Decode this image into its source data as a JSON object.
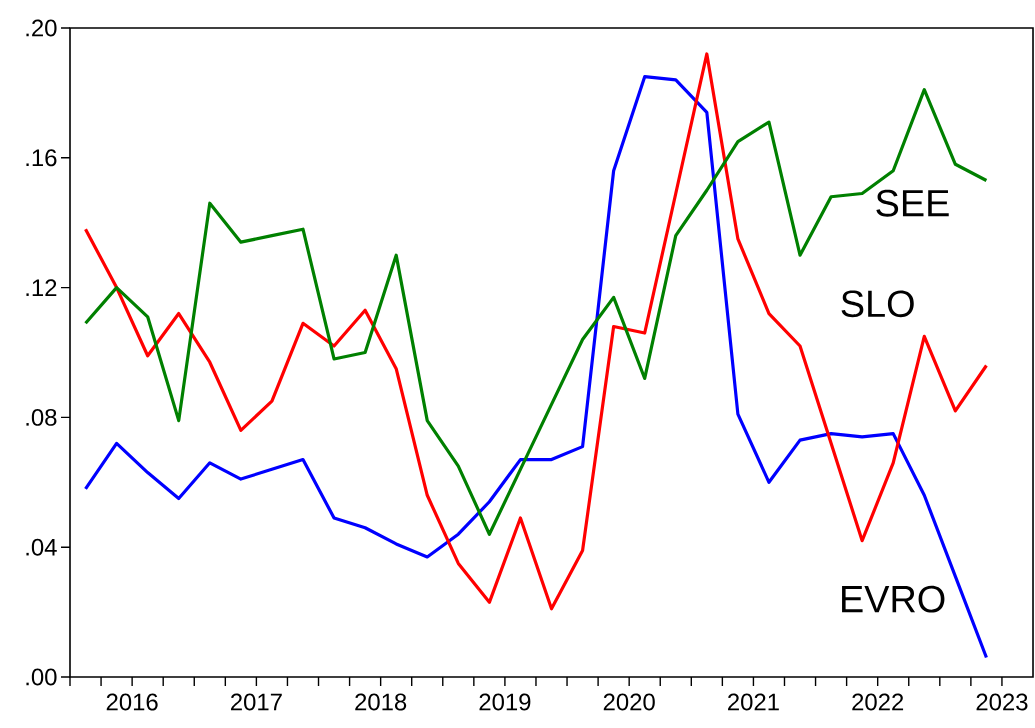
{
  "chart_data": {
    "type": "line",
    "x": [
      2016.125,
      2016.375,
      2016.625,
      2016.875,
      2017.125,
      2017.375,
      2017.625,
      2017.875,
      2018.125,
      2018.375,
      2018.625,
      2018.875,
      2019.125,
      2019.375,
      2019.625,
      2019.875,
      2020.125,
      2020.375,
      2020.625,
      2020.875,
      2021.125,
      2021.375,
      2021.625,
      2021.875,
      2022.125,
      2022.375,
      2022.625,
      2022.875,
      2023.125,
      2023.375
    ],
    "series": [
      {
        "name": "EVRO",
        "color": "#0000ff",
        "values": [
          0.058,
          0.072,
          0.063,
          0.055,
          0.066,
          0.061,
          0.064,
          0.067,
          0.049,
          0.046,
          0.041,
          0.037,
          0.044,
          0.054,
          0.067,
          0.067,
          0.071,
          0.156,
          0.185,
          0.184,
          0.174,
          0.081,
          0.06,
          0.073,
          0.075,
          0.074,
          0.075,
          0.056,
          0.031,
          0.006
        ]
      },
      {
        "name": "SLO",
        "color": "#ff0000",
        "values": [
          0.138,
          0.12,
          0.099,
          0.112,
          0.097,
          0.076,
          0.085,
          0.109,
          0.102,
          0.113,
          0.095,
          0.056,
          0.035,
          0.023,
          0.049,
          0.021,
          0.039,
          0.108,
          0.106,
          0.149,
          0.192,
          0.135,
          0.112,
          0.102,
          0.072,
          0.042,
          0.066,
          0.105,
          0.082,
          0.096
        ]
      },
      {
        "name": "SEE",
        "color": "#008000",
        "values": [
          0.109,
          0.12,
          0.111,
          0.079,
          0.146,
          0.134,
          0.136,
          0.138,
          0.098,
          0.1,
          0.13,
          0.079,
          0.065,
          0.044,
          0.064,
          0.084,
          0.104,
          0.117,
          0.092,
          0.136,
          0.15,
          0.165,
          0.171,
          0.13,
          0.148,
          0.149,
          0.156,
          0.181,
          0.158,
          0.153
        ]
      }
    ],
    "xlim": [
      2016,
      2023.75
    ],
    "xticks": [
      {
        "value": 2016,
        "label": null
      },
      {
        "value": 2016.25,
        "label": null
      },
      {
        "value": 2016.5,
        "label": "2016"
      },
      {
        "value": 2016.75,
        "label": null
      },
      {
        "value": 2017,
        "label": null
      },
      {
        "value": 2017.25,
        "label": null
      },
      {
        "value": 2017.5,
        "label": "2017"
      },
      {
        "value": 2017.75,
        "label": null
      },
      {
        "value": 2018,
        "label": null
      },
      {
        "value": 2018.25,
        "label": null
      },
      {
        "value": 2018.5,
        "label": "2018"
      },
      {
        "value": 2018.75,
        "label": null
      },
      {
        "value": 2019,
        "label": null
      },
      {
        "value": 2019.25,
        "label": null
      },
      {
        "value": 2019.5,
        "label": "2019"
      },
      {
        "value": 2019.75,
        "label": null
      },
      {
        "value": 2020,
        "label": null
      },
      {
        "value": 2020.25,
        "label": null
      },
      {
        "value": 2020.5,
        "label": "2020"
      },
      {
        "value": 2020.75,
        "label": null
      },
      {
        "value": 2021,
        "label": null
      },
      {
        "value": 2021.25,
        "label": null
      },
      {
        "value": 2021.5,
        "label": "2021"
      },
      {
        "value": 2021.75,
        "label": null
      },
      {
        "value": 2022,
        "label": null
      },
      {
        "value": 2022.25,
        "label": null
      },
      {
        "value": 2022.5,
        "label": "2022"
      },
      {
        "value": 2022.75,
        "label": null
      },
      {
        "value": 2023,
        "label": null
      },
      {
        "value": 2023.25,
        "label": null
      },
      {
        "value": 2023.5,
        "label": "2023"
      }
    ],
    "ylim": [
      0,
      0.2
    ],
    "yticks": [
      {
        "value": 0,
        "label": ".00"
      },
      {
        "value": 0.04,
        "label": ".04"
      },
      {
        "value": 0.08,
        "label": ".08"
      },
      {
        "value": 0.12,
        "label": ".12"
      },
      {
        "value": 0.16,
        "label": ".16"
      },
      {
        "value": 0.2,
        "label": ".20"
      }
    ],
    "grid": false,
    "legend": false,
    "marker": "none",
    "line_style": "solid"
  }
}
